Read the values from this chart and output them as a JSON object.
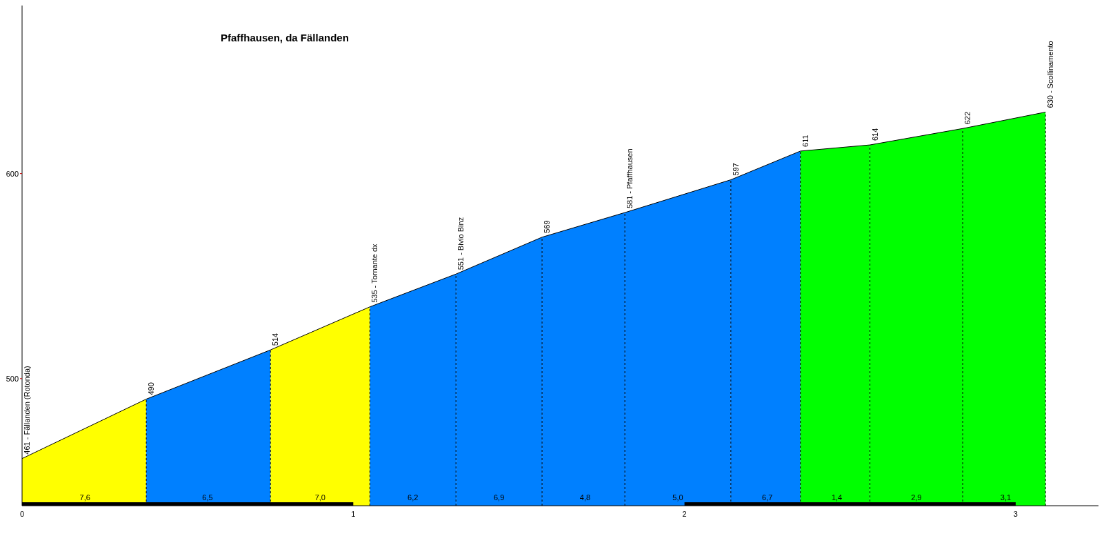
{
  "chart_data": {
    "type": "area",
    "title": "Pfaffhausen, da Fällanden",
    "series": [
      {
        "color": "#ffff00",
        "x": [
          0,
          0.375
        ],
        "values": [
          461,
          490
        ]
      },
      {
        "color": "#0080ff",
        "x": [
          0.375,
          0.75
        ],
        "values": [
          490,
          514
        ]
      },
      {
        "color": "#ffff00",
        "x": [
          0.75,
          1.05
        ],
        "values": [
          514,
          535
        ]
      },
      {
        "color": "#0080ff",
        "x": [
          1.05,
          1.31
        ],
        "values": [
          535,
          551
        ]
      },
      {
        "color": "#0080ff",
        "x": [
          1.31,
          1.57
        ],
        "values": [
          551,
          569
        ]
      },
      {
        "color": "#0080ff",
        "x": [
          1.57,
          1.82
        ],
        "values": [
          569,
          581
        ]
      },
      {
        "color": "#0080ff",
        "x": [
          1.82,
          2.14
        ],
        "values": [
          581,
          597
        ]
      },
      {
        "color": "#0080ff",
        "x": [
          2.14,
          2.35
        ],
        "values": [
          597,
          611
        ]
      },
      {
        "color": "#00ff00",
        "x": [
          2.35,
          2.56
        ],
        "values": [
          611,
          614
        ]
      },
      {
        "color": "#00ff00",
        "x": [
          2.56,
          2.84
        ],
        "values": [
          614,
          622
        ]
      },
      {
        "color": "#00ff00",
        "x": [
          2.84,
          3.09
        ],
        "values": [
          622,
          630
        ]
      }
    ],
    "annotations": [
      {
        "text": "461 - Fällanden (Rotonda)",
        "x": 0,
        "y": 461
      },
      {
        "text": "490",
        "x": 0.375,
        "y": 490
      },
      {
        "text": "514",
        "x": 0.75,
        "y": 514
      },
      {
        "text": "535 - Tornante dx",
        "x": 1.05,
        "y": 535
      },
      {
        "text": "551 - Bivio Binz",
        "x": 1.31,
        "y": 551
      },
      {
        "text": "569",
        "x": 1.57,
        "y": 569
      },
      {
        "text": "581 - Pfaffhausen",
        "x": 1.82,
        "y": 581
      },
      {
        "text": "597",
        "x": 2.14,
        "y": 597
      },
      {
        "text": "611",
        "x": 2.35,
        "y": 611
      },
      {
        "text": "614",
        "x": 2.56,
        "y": 614
      },
      {
        "text": "622",
        "x": 2.84,
        "y": 622
      },
      {
        "text": "630 - Scollinamento",
        "x": 3.09,
        "y": 630
      },
      {
        "text": "7,6",
        "x": 0.19,
        "y": 438
      },
      {
        "text": "6,5",
        "x": 0.56,
        "y": 438
      },
      {
        "text": "7,0",
        "x": 0.9,
        "y": 438
      },
      {
        "text": "6,2",
        "x": 1.18,
        "y": 438
      },
      {
        "text": "6,9",
        "x": 1.44,
        "y": 438
      },
      {
        "text": "4,8",
        "x": 1.7,
        "y": 438
      },
      {
        "text": "5,0",
        "x": 1.98,
        "y": 438
      },
      {
        "text": "6,7",
        "x": 2.25,
        "y": 438
      },
      {
        "text": "1,4",
        "x": 2.46,
        "y": 438
      },
      {
        "text": "2,9",
        "x": 2.7,
        "y": 438
      },
      {
        "text": "3,1",
        "x": 2.97,
        "y": 438
      }
    ],
    "xlim": [
      0,
      3.25
    ],
    "xticks": [
      0,
      1,
      2,
      3
    ],
    "ylim": [
      438,
      682
    ],
    "yticks": [
      500,
      600
    ],
    "line_style": "dashed"
  }
}
